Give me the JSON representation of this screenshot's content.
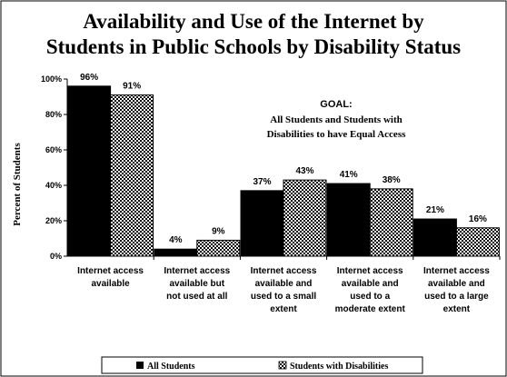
{
  "chart_data": {
    "type": "bar",
    "title": [
      "Availability and Use of the Internet by",
      "Students in Public Schools by Disability Status"
    ],
    "ylabel": "Percent of Students",
    "xlabel": "",
    "ylim": [
      0,
      100
    ],
    "yticks": [
      "0%",
      "20%",
      "40%",
      "60%",
      "80%",
      "100%"
    ],
    "categories": [
      [
        "Internet access",
        "available"
      ],
      [
        "Internet access",
        "available but",
        "not used at all"
      ],
      [
        "Internet access",
        "available and",
        "used to a small",
        "extent"
      ],
      [
        "Internet access",
        "available and",
        "used to a",
        "moderate extent"
      ],
      [
        "Internet access",
        "available and",
        "used to a large",
        "extent"
      ]
    ],
    "series": [
      {
        "name": "All Students",
        "values": [
          96,
          4,
          37,
          41,
          21
        ],
        "labels": [
          "96%",
          "4%",
          "37%",
          "41%",
          "21%"
        ],
        "fill": "solid",
        "color": "#000000"
      },
      {
        "name": "Students with Disabilities",
        "values": [
          91,
          9,
          43,
          38,
          16
        ],
        "labels": [
          "91%",
          "9%",
          "43%",
          "38%",
          "16%"
        ],
        "fill": "checker",
        "color": "#000000"
      }
    ],
    "annotation": {
      "heading": "GOAL:",
      "lines": [
        "All Students and Students with",
        "Disabilities to have Equal Access"
      ]
    },
    "grid": false,
    "legend": "bottom"
  }
}
